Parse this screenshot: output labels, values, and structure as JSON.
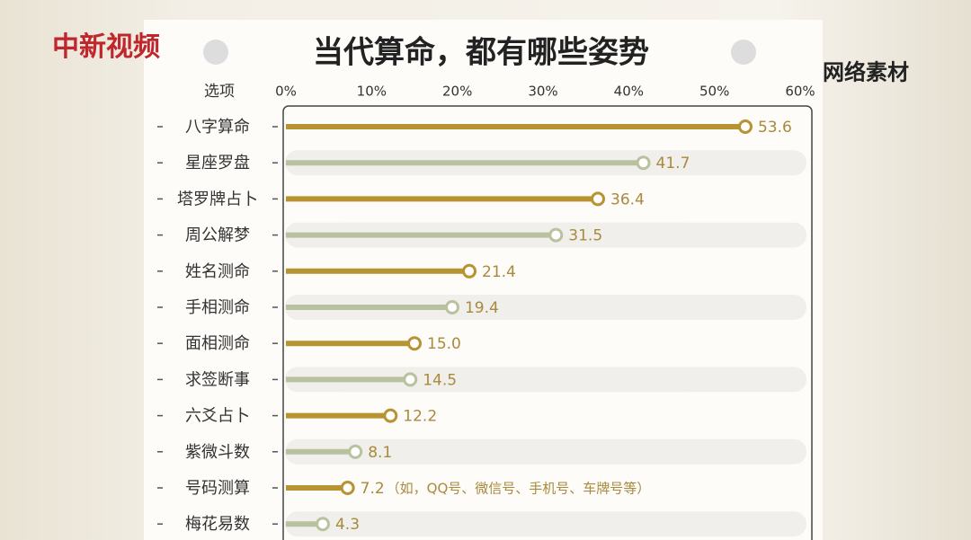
{
  "chart_data": {
    "type": "lollipop",
    "title": "当代算命，都有哪些姿势",
    "logo": "中新视频",
    "watermark": "网络素材",
    "category_header": "选项",
    "categories": [
      "八字算命",
      "星座罗盘",
      "塔罗牌占卜",
      "周公解梦",
      "姓名测命",
      "手相测命",
      "面相测命",
      "求签断事",
      "六爻占卜",
      "紫微斗数",
      "号码测算",
      "梅花易数"
    ],
    "values": [
      53.6,
      41.7,
      36.4,
      31.5,
      21.4,
      19.4,
      15.0,
      14.5,
      12.2,
      8.1,
      7.2,
      4.3
    ],
    "value_labels": [
      "53.6",
      "41.7",
      "36.4",
      "31.5",
      "21.4",
      "19.4",
      "15.0",
      "14.5",
      "12.2",
      "8.1",
      "7.2",
      "4.3"
    ],
    "annotation": "（如，QQ号、微信号、手机号、车牌号等）",
    "bar_colors": [
      "#b89331",
      "#b9c29f"
    ],
    "label_color": "#a88a3c",
    "xlim": [
      0,
      60
    ],
    "xticks": [
      {
        "value": 0,
        "label": "0%"
      },
      {
        "value": 10,
        "label": "10%"
      },
      {
        "value": 20,
        "label": "20%"
      },
      {
        "value": 30,
        "label": "30%"
      },
      {
        "value": 40,
        "label": "40%"
      },
      {
        "value": 50,
        "label": "50%"
      },
      {
        "value": 60,
        "label": "60%"
      }
    ]
  }
}
